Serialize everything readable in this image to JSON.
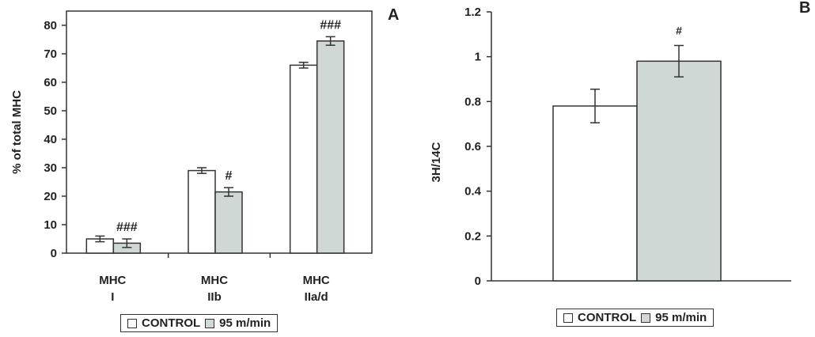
{
  "chart_data": [
    {
      "type": "bar",
      "panel_label": "A",
      "ylabel": "% of total MHC",
      "ylim": [
        0,
        85
      ],
      "yticks": [
        "0",
        "10",
        "20",
        "30",
        "40",
        "50",
        "60",
        "70",
        "80"
      ],
      "categories": [
        [
          "MHC",
          "I"
        ],
        [
          "MHC",
          "IIb"
        ],
        [
          "MHC",
          "IIa/d"
        ]
      ],
      "series": [
        {
          "name": "CONTROL",
          "values": [
            5,
            29,
            66
          ],
          "errors": [
            1,
            1,
            1
          ]
        },
        {
          "name": "95 m/min",
          "values": [
            3.5,
            21.5,
            74.5
          ],
          "errors": [
            1.5,
            1.5,
            1.5
          ]
        }
      ],
      "annotations": [
        "###",
        "#",
        "###"
      ],
      "legend": {
        "position": "bottom",
        "items": [
          "CONTROL",
          "95 m/min"
        ]
      },
      "grid": false
    },
    {
      "type": "bar",
      "panel_label": "B",
      "ylabel": "3H/14C",
      "ylim": [
        0,
        1.2
      ],
      "yticks": [
        "0",
        "0.2",
        "0.4",
        "0.6",
        "0.8",
        "1",
        "1.2"
      ],
      "series": [
        {
          "name": "CONTROL",
          "values": [
            0.78
          ],
          "errors": [
            0.075
          ]
        },
        {
          "name": "95 m/min",
          "values": [
            0.98
          ],
          "errors": [
            0.07
          ]
        }
      ],
      "annotations": [
        "#"
      ],
      "legend": {
        "position": "bottom",
        "items": [
          "CONTROL",
          "95 m/min"
        ]
      },
      "grid": false
    }
  ],
  "colors": {
    "control": "#ffffff",
    "treated": "#cfd8d4",
    "axis": "#333333"
  }
}
